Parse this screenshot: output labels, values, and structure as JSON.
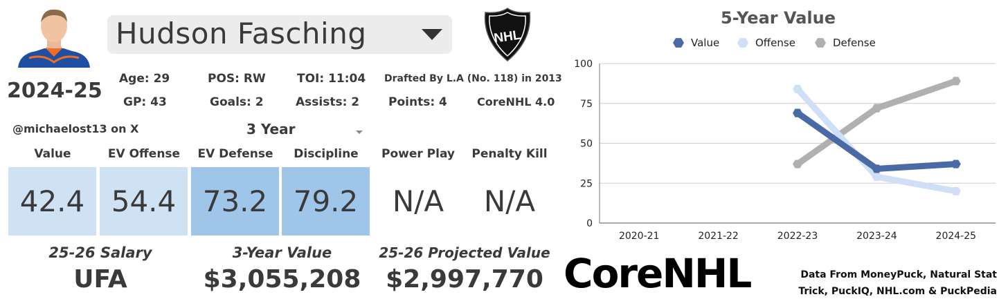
{
  "player": {
    "name": "Hudson Fasching",
    "season": "2024-25",
    "social_handle": "@michaelost13 on X",
    "period_selector": "3 Year"
  },
  "bio": {
    "age": "Age: 29",
    "position": "POS: RW",
    "toi": "TOI: 11:04",
    "drafted": "Drafted By L.A (No. 118) in 2013",
    "gp": "GP: 43",
    "goals": "Goals: 2",
    "assists": "Assists: 2",
    "points": "Points: 4",
    "corenhl_rating": "CoreNHL 4.0"
  },
  "metrics": [
    {
      "label": "Value",
      "value": "42.4"
    },
    {
      "label": "EV Offense",
      "value": "54.4"
    },
    {
      "label": "EV Defense",
      "value": "73.2"
    },
    {
      "label": "Discipline",
      "value": "79.2"
    },
    {
      "label": "Power Play",
      "value": "N/A"
    },
    {
      "label": "Penalty Kill",
      "value": "N/A"
    }
  ],
  "footer": {
    "salary_label": "25-26 Salary",
    "salary_value": "UFA",
    "three_year_label": "3-Year Value",
    "three_year_value": "$3,055,208",
    "projected_label": "25-26 Projected Value",
    "projected_value": "$2,997,770"
  },
  "branding": {
    "logo_text": "CoreNHL",
    "nhl_logo_text": "NHL",
    "credits_line1": "Data From MoneyPuck, Natural Stat",
    "credits_line2": "Trick, PuckIQ, NHL.com & PuckPedia"
  },
  "colors": {
    "value_series": "#4a6aa5",
    "offense_series": "#cfdff7",
    "defense_series": "#b0b0b0",
    "cell_light": "#cfe2f3",
    "cell_mid": "#9fc5e8"
  },
  "chart_data": {
    "type": "line",
    "title": "5-Year Value",
    "categories": [
      "2020-21",
      "2021-22",
      "2022-23",
      "2023-24",
      "2024-25"
    ],
    "series": [
      {
        "name": "Value",
        "values": [
          null,
          null,
          69,
          34,
          37
        ]
      },
      {
        "name": "Offense",
        "values": [
          null,
          null,
          84,
          29,
          20
        ]
      },
      {
        "name": "Defense",
        "values": [
          null,
          null,
          37,
          72,
          89
        ]
      }
    ],
    "ylim": [
      0,
      100
    ],
    "yticks": [
      "0",
      "25",
      "50",
      "75",
      "100"
    ],
    "legend": "top",
    "grid": true
  }
}
